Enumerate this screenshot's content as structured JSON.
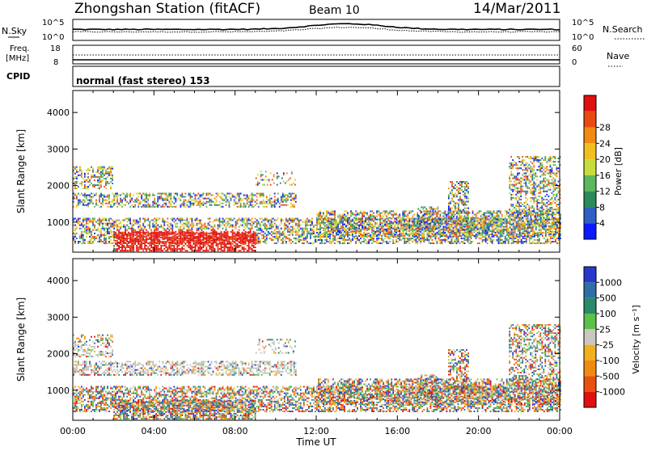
{
  "header": {
    "station": "Zhongshan Station (fitACF)",
    "beam": "Beam 10",
    "date": "14/Mar/2011"
  },
  "noise_panel": {
    "left_label": "N.Sky",
    "left_ticks": [
      "10^5",
      "10^0"
    ],
    "right_label": "N.Search",
    "right_ticks": [
      "10^5",
      "10^0"
    ]
  },
  "freq_panel": {
    "left_label_1": "Freq.",
    "left_label_2": "[MHz]",
    "left_ticks": [
      "18",
      "8"
    ],
    "right_label": "Nave",
    "right_ticks": [
      "60",
      "0"
    ]
  },
  "cpid": {
    "label": "CPID",
    "mode": "normal (fast stereo) 153"
  },
  "chart_data": [
    {
      "type": "heatmap",
      "name": "power",
      "ylabel": "Slant Range [km]",
      "xlabel": "Time UT",
      "x_ticks": [
        "00:00",
        "04:00",
        "08:00",
        "12:00",
        "16:00",
        "20:00",
        "00:00"
      ],
      "xlim_hours": [
        0,
        24
      ],
      "y_ticks": [
        "1000",
        "2000",
        "3000",
        "4000"
      ],
      "ylim": [
        180,
        4600
      ],
      "colorbar": {
        "label": "Power [dB]",
        "ticks": [
          "4",
          "8",
          "12",
          "16",
          "20",
          "24",
          "28"
        ],
        "range": [
          0,
          30
        ],
        "colors": [
          "#0a1aff",
          "#2f5fc4",
          "#2a8a5a",
          "#5cb85c",
          "#c8dc3c",
          "#f0c020",
          "#f08a10",
          "#e84a10",
          "#e01010"
        ]
      }
    },
    {
      "type": "heatmap",
      "name": "velocity",
      "ylabel": "Slant Range [km]",
      "xlabel": "Time UT",
      "x_ticks": [
        "00:00",
        "04:00",
        "08:00",
        "12:00",
        "16:00",
        "20:00",
        "00:00"
      ],
      "xlim_hours": [
        0,
        24
      ],
      "y_ticks": [
        "1000",
        "2000",
        "3000",
        "4000"
      ],
      "ylim": [
        180,
        4600
      ],
      "colorbar": {
        "label": "Velocity [m s⁻¹]",
        "ticks": [
          "1000",
          "500",
          "100",
          "25",
          "-25",
          "-100",
          "-500",
          "-1000"
        ],
        "colors": [
          "#2838c8",
          "#2f6ea8",
          "#2a8a6a",
          "#5cc04a",
          "#c8c8c0",
          "#f0b020",
          "#f08a10",
          "#e85010",
          "#e01010"
        ],
        "ground_scatter_color": "#c0c0b8"
      }
    }
  ]
}
